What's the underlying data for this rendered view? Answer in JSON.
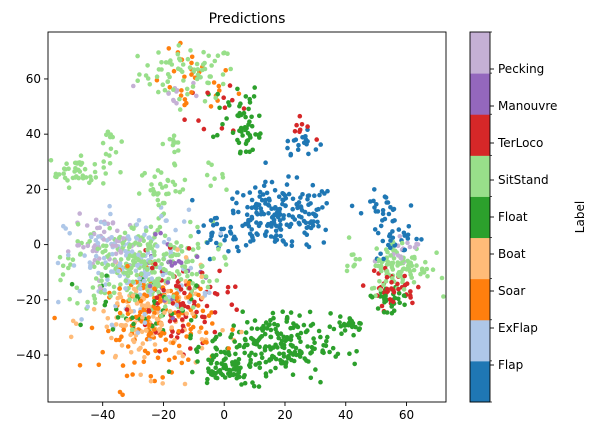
{
  "chart_data": {
    "type": "scatter",
    "title": "Predictions",
    "xlabel": "",
    "ylabel": "",
    "xlim": [
      -58,
      73
    ],
    "ylim": [
      -57,
      77
    ],
    "x_ticks": [
      -40,
      -20,
      0,
      20,
      40,
      60
    ],
    "y_ticks": [
      -40,
      -20,
      0,
      20,
      40,
      60
    ],
    "grid": false,
    "colorbar": {
      "label": "Label",
      "categories": [
        {
          "name": "Flap",
          "color": "#1f77b4"
        },
        {
          "name": "ExFlap",
          "color": "#aec7e8"
        },
        {
          "name": "Soar",
          "color": "#ff7f0e"
        },
        {
          "name": "Boat",
          "color": "#ffbb78"
        },
        {
          "name": "Float",
          "color": "#2ca02c"
        },
        {
          "name": "SitStand",
          "color": "#98df8a"
        },
        {
          "name": "TerLoco",
          "color": "#d62728"
        },
        {
          "name": "Manouvre",
          "color": "#9467bd"
        },
        {
          "name": "Pecking",
          "color": "#c5b0d5"
        }
      ]
    },
    "clusters": [
      {
        "label": "SitStand",
        "cx": -12,
        "cy": 62,
        "sx": 8,
        "sy": 5,
        "n": 70
      },
      {
        "label": "Soar",
        "cx": -10,
        "cy": 58,
        "sx": 7,
        "sy": 6,
        "n": 30
      },
      {
        "label": "Float",
        "cx": 4,
        "cy": 48,
        "sx": 4,
        "sy": 6,
        "n": 35
      },
      {
        "label": "Float",
        "cx": 8,
        "cy": 38,
        "sx": 3,
        "sy": 4,
        "n": 20
      },
      {
        "label": "TerLoco",
        "cx": 0,
        "cy": 52,
        "sx": 6,
        "sy": 8,
        "n": 12
      },
      {
        "label": "Pecking",
        "cx": -16,
        "cy": 54,
        "sx": 4,
        "sy": 3,
        "n": 10
      },
      {
        "label": "Flap",
        "cx": 25,
        "cy": 37,
        "sx": 3,
        "sy": 2,
        "n": 18
      },
      {
        "label": "TerLoco",
        "cx": 25,
        "cy": 42,
        "sx": 2,
        "sy": 2,
        "n": 8
      },
      {
        "label": "SitStand",
        "cx": -48,
        "cy": 27,
        "sx": 5,
        "sy": 3,
        "n": 50
      },
      {
        "label": "SitStand",
        "cx": -20,
        "cy": 20,
        "sx": 4,
        "sy": 4,
        "n": 35
      },
      {
        "label": "SitStand",
        "cx": -37,
        "cy": 37,
        "sx": 2,
        "sy": 2,
        "n": 10
      },
      {
        "label": "SitStand",
        "cx": -17,
        "cy": 37,
        "sx": 2,
        "sy": 2,
        "n": 10
      },
      {
        "label": "SitStand",
        "cx": -6,
        "cy": 25,
        "sx": 3,
        "sy": 2,
        "n": 8
      },
      {
        "label": "Flap",
        "cx": 18,
        "cy": 10,
        "sx": 10,
        "sy": 6,
        "n": 200
      },
      {
        "label": "Flap",
        "cx": 52,
        "cy": 11,
        "sx": 3,
        "sy": 4,
        "n": 30
      },
      {
        "label": "Flap",
        "cx": -2,
        "cy": 4,
        "sx": 3,
        "sy": 2,
        "n": 15
      },
      {
        "label": "SitStand",
        "cx": -28,
        "cy": -8,
        "sx": 12,
        "sy": 8,
        "n": 280
      },
      {
        "label": "ExFlap",
        "cx": -30,
        "cy": -8,
        "sx": 11,
        "sy": 10,
        "n": 160
      },
      {
        "label": "Pecking",
        "cx": -38,
        "cy": 0,
        "sx": 6,
        "sy": 5,
        "n": 50
      },
      {
        "label": "Soar",
        "cx": -22,
        "cy": -28,
        "sx": 9,
        "sy": 9,
        "n": 150
      },
      {
        "label": "Boat",
        "cx": -24,
        "cy": -28,
        "sx": 10,
        "sy": 9,
        "n": 130
      },
      {
        "label": "TerLoco",
        "cx": -14,
        "cy": -22,
        "sx": 8,
        "sy": 8,
        "n": 80
      },
      {
        "label": "Float",
        "cx": -26,
        "cy": -22,
        "sx": 8,
        "sy": 6,
        "n": 40
      },
      {
        "label": "Manouvre",
        "cx": -18,
        "cy": -8,
        "sx": 8,
        "sy": 8,
        "n": 25
      },
      {
        "label": "Float",
        "cx": 15,
        "cy": -37,
        "sx": 10,
        "sy": 6,
        "n": 220
      },
      {
        "label": "Float",
        "cx": 0,
        "cy": -45,
        "sx": 5,
        "sy": 3,
        "n": 50
      },
      {
        "label": "Float",
        "cx": 42,
        "cy": -29,
        "sx": 2,
        "sy": 1.5,
        "n": 25
      },
      {
        "label": "SitStand",
        "cx": 58,
        "cy": -8,
        "sx": 5,
        "sy": 5,
        "n": 100
      },
      {
        "label": "TerLoco",
        "cx": 55,
        "cy": -16,
        "sx": 4,
        "sy": 3,
        "n": 40
      },
      {
        "label": "Float",
        "cx": 54,
        "cy": -20,
        "sx": 4,
        "sy": 3,
        "n": 30
      },
      {
        "label": "Flap",
        "cx": 57,
        "cy": 2,
        "sx": 3,
        "sy": 3,
        "n": 20
      },
      {
        "label": "Pecking",
        "cx": 58,
        "cy": -2,
        "sx": 3,
        "sy": 3,
        "n": 15
      },
      {
        "label": "SitStand",
        "cx": 42,
        "cy": -5,
        "sx": 1.5,
        "sy": 1.5,
        "n": 8
      }
    ]
  }
}
